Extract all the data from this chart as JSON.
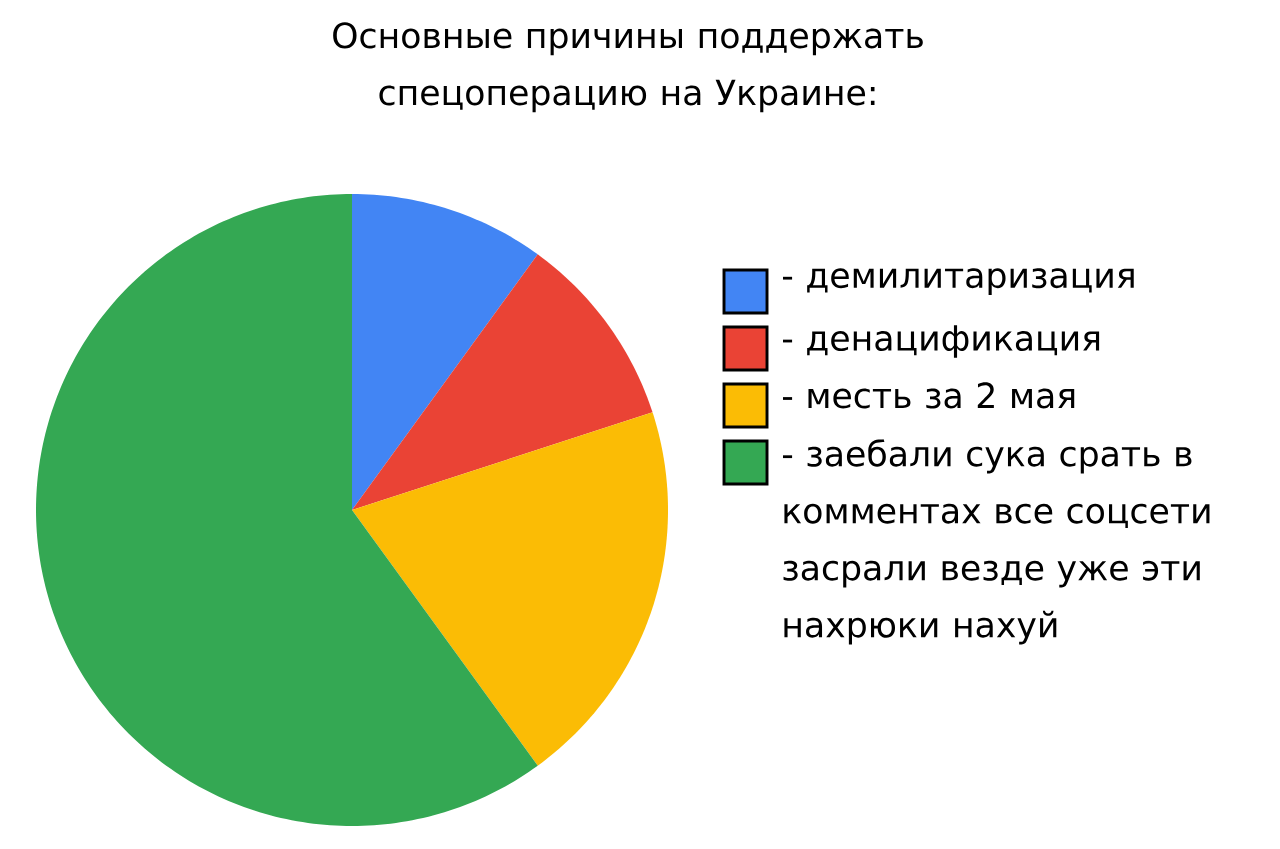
{
  "chart_data": {
    "type": "pie",
    "title": "Основные причины поддержать спецоперацию на Украине:",
    "categories": [
      "- демилитаризация",
      "- денацификация",
      "- месть за 2 мая",
      "- заебали сука срать в комментах все соцсети засрали везде уже эти нахрюки нахуй"
    ],
    "values": [
      10,
      10,
      20,
      60
    ],
    "colors": [
      "#4285f4",
      "#ea4335",
      "#fbbc05",
      "#34a853"
    ],
    "legend": "right"
  }
}
